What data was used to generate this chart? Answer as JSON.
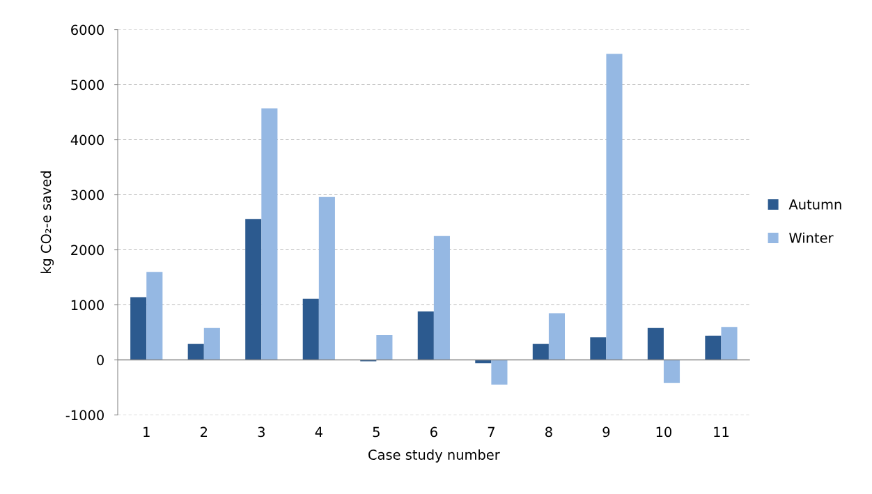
{
  "chart_data": {
    "type": "bar",
    "xlabel": "Case study number",
    "ylabel": "kg CO₂-e saved",
    "categories": [
      "1",
      "2",
      "3",
      "4",
      "5",
      "6",
      "7",
      "8",
      "9",
      "10",
      "11"
    ],
    "series": [
      {
        "name": "Autumn",
        "color": "#2c5a8f",
        "values": [
          1140,
          290,
          2560,
          1110,
          -25,
          880,
          -60,
          290,
          410,
          580,
          440
        ]
      },
      {
        "name": "Winter",
        "color": "#95b8e3",
        "values": [
          1600,
          580,
          4570,
          2960,
          450,
          2250,
          -450,
          850,
          5560,
          -420,
          600
        ]
      }
    ],
    "ylim": [
      -1000,
      6000
    ],
    "yticks": [
      -1000,
      0,
      1000,
      2000,
      3000,
      4000,
      5000,
      6000
    ],
    "grid": "y",
    "legend": "right"
  }
}
